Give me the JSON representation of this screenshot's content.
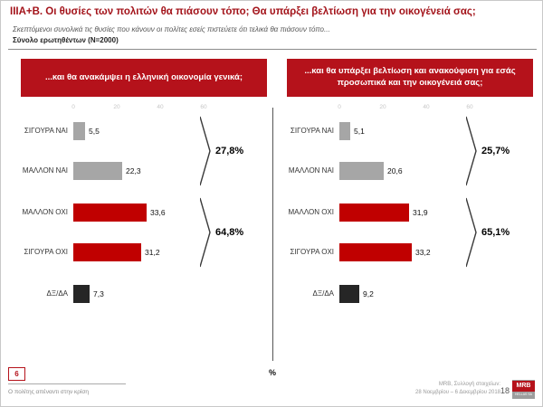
{
  "page": {
    "title": "IIIA+B. Οι θυσίες των πολιτών θα πιάσουν τόπο; Θα υπάρξει βελτίωση για την οικογένειά σας;",
    "subtitle": "Σκεπτόμενοι συνολικά τις θυσίες που κάνουν οι πολίτες εσείς  πιστεύετε ότι τελικά θα πιάσουν τόπο...",
    "sample": "Σύνολο ερωτηθέντων (N=2000)",
    "percent_note": "%",
    "slide_number_box": "6",
    "footer_left": "Ο πολίτης απέναντι στην κρίση",
    "footer_right_line1": "MRB, Συλλογή στοιχείων:",
    "footer_right_line2": "28 Νοεμβρίου – 6 Δεκεμβρίου 2018",
    "page_number": "18",
    "logo_text": "MRB",
    "logo_subtext": "HELLAS SA"
  },
  "colors": {
    "header_red": "#b5121b",
    "bar_red": "#c00000",
    "bar_gray": "#a6a6a6",
    "bar_black": "#262626",
    "title_red": "#a3131a"
  },
  "chart_data": [
    {
      "type": "bar",
      "orientation": "horizontal",
      "title": "...και θα ανακάμψει η ελληνική οικονομία γενικά;",
      "categories": [
        "ΣΙΓΟΥΡΑ ΝΑΙ",
        "ΜΑΛΛΟΝ ΝΑΙ",
        "ΜΑΛΛΟΝ ΟΧΙ",
        "ΣΙΓΟΥΡΑ ΟΧΙ",
        "ΔΞ/ΔΑ"
      ],
      "values": [
        5.5,
        22.3,
        33.6,
        31.2,
        7.3
      ],
      "value_labels": [
        "5,5",
        "22,3",
        "33,6",
        "31,2",
        "7,3"
      ],
      "bar_colors": [
        "gray",
        "gray",
        "red",
        "red",
        "black"
      ],
      "gap_before": [
        2,
        4
      ],
      "groups": [
        {
          "label": "27,8%",
          "from": 0,
          "to": 1
        },
        {
          "label": "64,8%",
          "from": 2,
          "to": 3
        }
      ],
      "axis_ticks": [
        0,
        20,
        40,
        60
      ],
      "xlim": [
        0,
        60
      ],
      "unit": "%"
    },
    {
      "type": "bar",
      "orientation": "horizontal",
      "title": "...και θα υπάρξει βελτίωση και ανακούφιση για εσάς προσωπικά και την οικογένειά σας;",
      "categories": [
        "ΣΙΓΟΥΡΑ ΝΑΙ",
        "ΜΑΛΛΟΝ ΝΑΙ",
        "ΜΑΛΛΟΝ ΟΧΙ",
        "ΣΙΓΟΥΡΑ ΟΧΙ",
        "ΔΞ/ΔΑ"
      ],
      "values": [
        5.1,
        20.6,
        31.9,
        33.2,
        9.2
      ],
      "value_labels": [
        "5,1",
        "20,6",
        "31,9",
        "33,2",
        "9,2"
      ],
      "bar_colors": [
        "gray",
        "gray",
        "red",
        "red",
        "black"
      ],
      "gap_before": [
        2,
        4
      ],
      "groups": [
        {
          "label": "25,7%",
          "from": 0,
          "to": 1
        },
        {
          "label": "65,1%",
          "from": 2,
          "to": 3
        }
      ],
      "axis_ticks": [
        0,
        20,
        40,
        60
      ],
      "xlim": [
        0,
        60
      ],
      "unit": "%"
    }
  ]
}
